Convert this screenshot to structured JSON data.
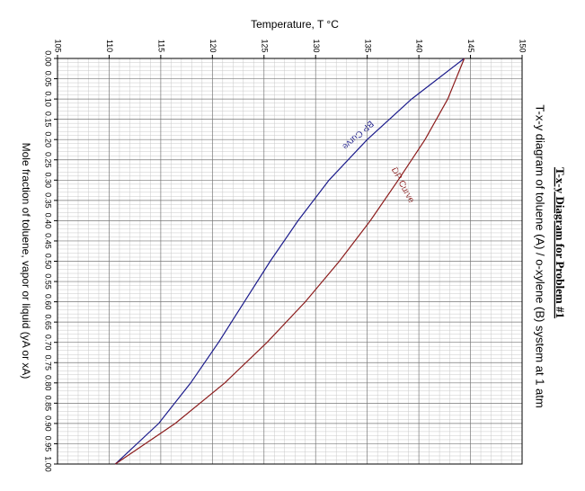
{
  "chart_data": {
    "type": "line",
    "title": "T-x-y Diagram for Problem #1",
    "subtitle": "T-x-y diagram of toluene (A) / o-xylene (B) system at 1 atm",
    "x_label": "Mole fraction of toluene, vapor or liquid (yA or xA)",
    "y_label": "Temperature, T °C",
    "x": [
      0,
      0.1,
      0.2,
      0.3,
      0.4,
      0.5,
      0.6,
      0.7,
      0.8,
      0.9,
      1.0
    ],
    "series": [
      {
        "name": "BP Curve",
        "color": "#1c1c8c",
        "values": [
          144.4,
          139.3,
          135.0,
          131.3,
          128.3,
          125.6,
          123.1,
          120.6,
          117.9,
          114.8,
          110.6
        ]
      },
      {
        "name": "DP Curve",
        "color": "#8c1c1c",
        "values": [
          144.4,
          142.8,
          140.6,
          138.0,
          135.3,
          132.3,
          129.0,
          125.3,
          121.2,
          116.4,
          110.6
        ]
      }
    ],
    "xlim": [
      0,
      1
    ],
    "xticks": [
      {
        "value": 0,
        "label": "0.00"
      },
      {
        "value": 0.05,
        "label": "0.05"
      },
      {
        "value": 0.1,
        "label": "0.10"
      },
      {
        "value": 0.15,
        "label": "0.15"
      },
      {
        "value": 0.2,
        "label": "0.20"
      },
      {
        "value": 0.25,
        "label": "0.25"
      },
      {
        "value": 0.3,
        "label": "0.30"
      },
      {
        "value": 0.35,
        "label": "0.35"
      },
      {
        "value": 0.4,
        "label": "0.40"
      },
      {
        "value": 0.45,
        "label": "0.45"
      },
      {
        "value": 0.5,
        "label": "0.50"
      },
      {
        "value": 0.55,
        "label": "0.55"
      },
      {
        "value": 0.6,
        "label": "0.60"
      },
      {
        "value": 0.65,
        "label": "0.65"
      },
      {
        "value": 0.7,
        "label": "0.70"
      },
      {
        "value": 0.75,
        "label": "0.75"
      },
      {
        "value": 0.8,
        "label": "0.80"
      },
      {
        "value": 0.85,
        "label": "0.85"
      },
      {
        "value": 0.9,
        "label": "0.90"
      },
      {
        "value": 0.95,
        "label": "0.95"
      },
      {
        "value": 1,
        "label": "1.00"
      }
    ],
    "ylim": [
      105,
      150
    ],
    "yticks": [
      105,
      110,
      115,
      120,
      125,
      130,
      135,
      140,
      145,
      150
    ],
    "grid": true
  }
}
